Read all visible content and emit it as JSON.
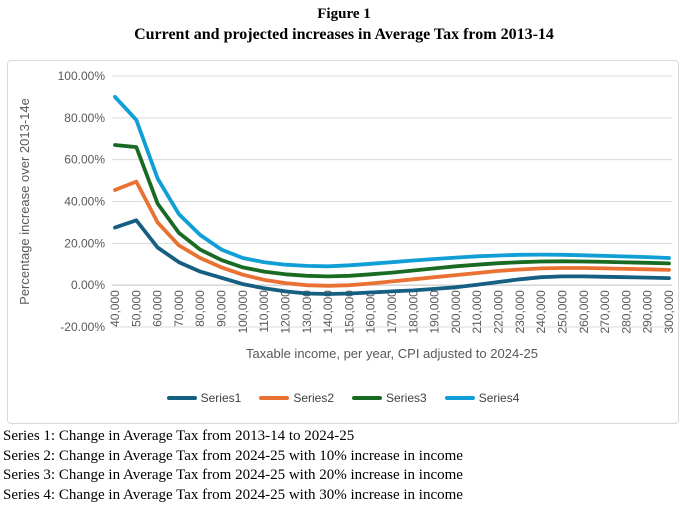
{
  "title": {
    "line1": "Figure 1",
    "line2": "Current and projected increases in Average Tax from 2013-14"
  },
  "chart_data": {
    "type": "line",
    "title": "",
    "xlabel": "Taxable income, per year, CPI adjusted to 2024-25",
    "ylabel": "Percentage increase over 2013-14e",
    "ylim": [
      -20,
      100
    ],
    "grid": "horizontal",
    "legend_position": "bottom",
    "ytick_labels": [
      "100.00%",
      "80.00%",
      "60.00%",
      "40.00%",
      "20.00%",
      "0.00%",
      "-20.00%"
    ],
    "ytick_values": [
      100,
      80,
      60,
      40,
      20,
      0,
      -20
    ],
    "categories": [
      "40,000",
      "50,000",
      "60,000",
      "70,000",
      "80,000",
      "90,000",
      "100,000",
      "110,000",
      "120,000",
      "130,000",
      "140,000",
      "150,000",
      "160,000",
      "170,000",
      "180,000",
      "190,000",
      "200,000",
      "210,000",
      "220,000",
      "230,000",
      "240,000",
      "250,000",
      "260,000",
      "270,000",
      "280,000",
      "290,000",
      "300,000"
    ],
    "series": [
      {
        "name": "Series1",
        "color": "#156082",
        "values": [
          27.5,
          31,
          18,
          11,
          6.5,
          3.5,
          0.5,
          -1.5,
          -3,
          -4,
          -4.2,
          -4,
          -3.5,
          -3,
          -2.5,
          -1.8,
          -1,
          0.2,
          1.5,
          2.8,
          3.8,
          4.2,
          4.2,
          4,
          3.8,
          3.6,
          3.4
        ]
      },
      {
        "name": "Series2",
        "color": "#E97132",
        "values": [
          45.5,
          49.5,
          30,
          19,
          13,
          8.5,
          5,
          2.5,
          1,
          0,
          -0.3,
          0,
          0.8,
          1.8,
          2.8,
          3.8,
          4.8,
          5.8,
          6.8,
          7.5,
          8,
          8.2,
          8.2,
          8,
          7.8,
          7.6,
          7.3
        ]
      },
      {
        "name": "Series3",
        "color": "#196B24",
        "values": [
          67,
          66,
          39,
          25,
          17,
          12,
          8.5,
          6.5,
          5.2,
          4.5,
          4.2,
          4.5,
          5.2,
          6,
          7,
          8,
          9,
          9.8,
          10.5,
          11,
          11.3,
          11.4,
          11.3,
          11.1,
          10.9,
          10.7,
          10.4
        ]
      },
      {
        "name": "Series4",
        "color": "#0F9ED5",
        "values": [
          90,
          79,
          51,
          34,
          24,
          17,
          13,
          11,
          9.8,
          9.2,
          9,
          9.5,
          10.2,
          11,
          11.8,
          12.5,
          13.2,
          13.8,
          14.2,
          14.5,
          14.6,
          14.5,
          14.3,
          14,
          13.7,
          13.4,
          13
        ]
      }
    ]
  },
  "colors": {
    "gridline": "#D9D9D9",
    "zero_axis": "#BFBFBF",
    "axis_text": "#595959",
    "frame_border": "#D9D9D9"
  },
  "footnotes": [
    "Series 1: Change in Average Tax from 2013-14 to 2024-25",
    "Series 2: Change in Average Tax from 2024-25 with 10% increase in income",
    "Series 3: Change in Average Tax from 2024-25 with 20% increase in income",
    "Series 4: Change in Average Tax from 2024-25 with 30% increase in income"
  ]
}
